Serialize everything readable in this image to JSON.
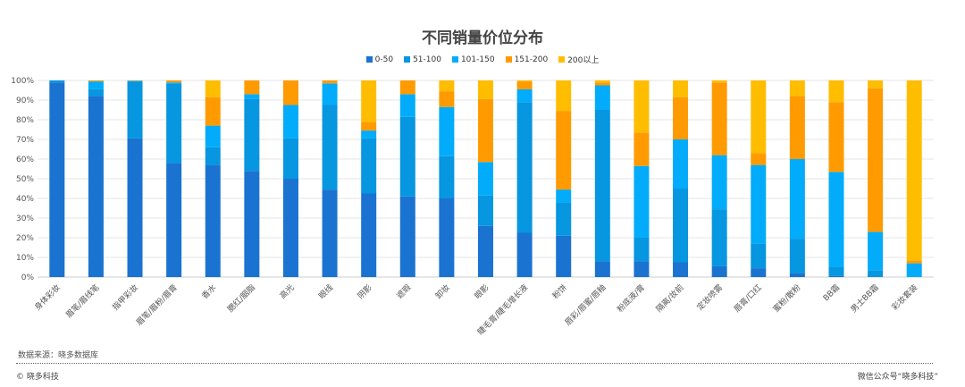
{
  "chart_data": {
    "type": "bar",
    "stacked": true,
    "title": "不同销量价位分布",
    "xlabel": "",
    "ylabel": "",
    "ylim": [
      0,
      100
    ],
    "yticks": [
      "0%",
      "10%",
      "20%",
      "30%",
      "40%",
      "50%",
      "60%",
      "70%",
      "80%",
      "90%",
      "100%"
    ],
    "grid": true,
    "legend_position": "top-center",
    "categories": [
      "身体彩妆",
      "眉笔/眉线笔",
      "指甲彩妆",
      "眉笔/眉粉/眉膏",
      "香水",
      "腮红/胭脂",
      "高光",
      "眼线",
      "阴影",
      "遮瑕",
      "卸妆",
      "眼影",
      "睫毛膏/睫毛增长液",
      "粉饼",
      "唇彩/唇蜜/唇釉",
      "粉底液/膏",
      "隔离/妆前",
      "定妆喷雾",
      "唇膏/口红",
      "蜜粉/散粉",
      "BB霜",
      "男士BB霜",
      "彩妆套装"
    ],
    "series": [
      {
        "name": "0-50",
        "color": "#1a73d1",
        "values": [
          99,
          92,
          70.5,
          58,
          57,
          54,
          50,
          44.5,
          42.5,
          41,
          40,
          26,
          22.5,
          21,
          8,
          8,
          7.5,
          5.5,
          4.5,
          2,
          0.5,
          0,
          0
        ]
      },
      {
        "name": "51-100",
        "color": "#0796e0",
        "values": [
          1,
          3.5,
          29,
          40.5,
          9,
          36.5,
          20.5,
          43,
          28,
          40.5,
          21.5,
          15.5,
          66.5,
          17,
          77,
          12,
          37.5,
          29,
          12.5,
          17.5,
          4.5,
          3.5,
          0
        ]
      },
      {
        "name": "101-150",
        "color": "#03acfa",
        "values": [
          0,
          4,
          0.3,
          0.5,
          11,
          2.5,
          17,
          11,
          4,
          11.5,
          25,
          17,
          6.5,
          6.5,
          12.5,
          36.5,
          25,
          27.5,
          40,
          40.5,
          48.5,
          19.5,
          7
        ]
      },
      {
        "name": "151-200",
        "color": "#ff9b00",
        "values": [
          0,
          0.5,
          0.2,
          1,
          14.5,
          7,
          12.5,
          1.5,
          4.5,
          7,
          8,
          32,
          4,
          40,
          1.5,
          17,
          21.5,
          37,
          6,
          32,
          35.5,
          73,
          1.5
        ]
      },
      {
        "name": "200以上",
        "color": "#ffbd00",
        "values": [
          0,
          0,
          0,
          0,
          8.5,
          0,
          0,
          0,
          21,
          0,
          5.5,
          9.5,
          0.5,
          15.5,
          1,
          26.5,
          8.5,
          1,
          37,
          8,
          11,
          4,
          91.5
        ]
      }
    ]
  },
  "footer": {
    "source": "数据来源：晓多数据库",
    "copyright": "© 晓多科技",
    "wechat": "微信公众号“晓多科技”"
  }
}
